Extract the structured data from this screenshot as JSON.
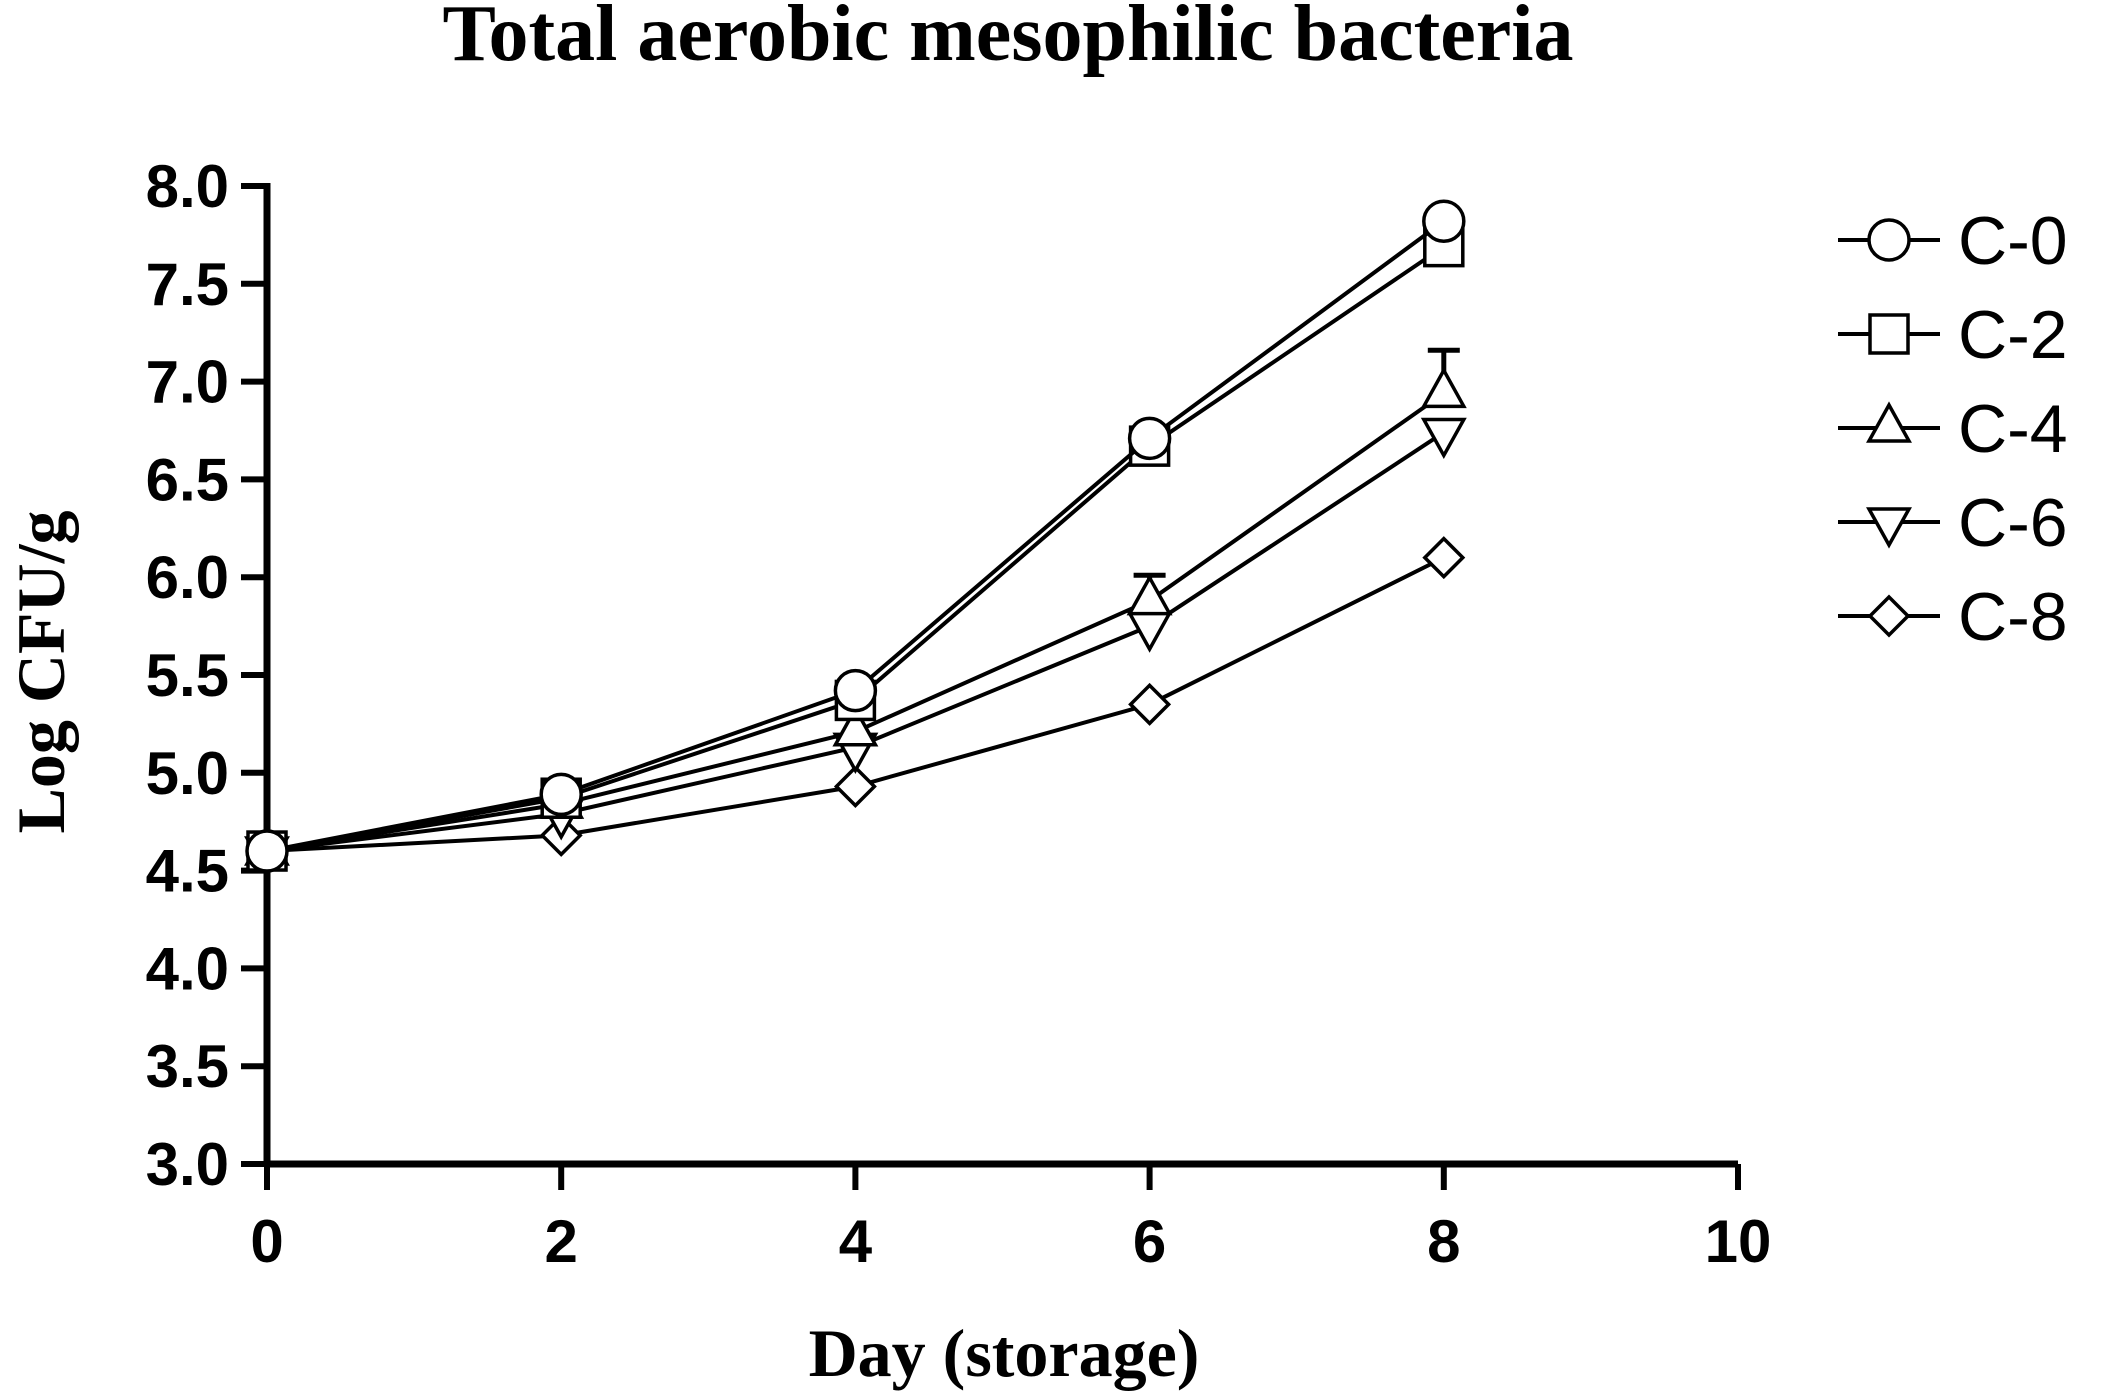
{
  "chart_data": {
    "type": "line",
    "title": "Total aerobic mesophilic bacteria",
    "xlabel": "Day (storage)",
    "ylabel": "Log CFU/g",
    "xlim": [
      0,
      10
    ],
    "ylim": [
      3.0,
      8.0
    ],
    "x_ticks": [
      "0",
      "2",
      "4",
      "6",
      "8",
      "10"
    ],
    "y_ticks": [
      "3.0",
      "3.5",
      "4.0",
      "4.5",
      "5.0",
      "5.5",
      "6.0",
      "6.5",
      "7.0",
      "7.5",
      "8.0"
    ],
    "x": [
      0,
      2,
      4,
      6,
      8
    ],
    "legend_position": "right",
    "grid": false,
    "series": [
      {
        "name": "C-0",
        "marker": "circle",
        "values": [
          4.6,
          4.89,
          5.42,
          6.71,
          7.82
        ],
        "error_upper": [
          0,
          0,
          0,
          0.05,
          0
        ]
      },
      {
        "name": "C-2",
        "marker": "square",
        "values": [
          4.6,
          4.87,
          5.37,
          6.67,
          7.69
        ],
        "error_upper": [
          0,
          0,
          0,
          0.1,
          0
        ]
      },
      {
        "name": "C-4",
        "marker": "triangle-up",
        "values": [
          4.6,
          4.84,
          5.21,
          5.88,
          6.94
        ],
        "error_upper": [
          0,
          0,
          0,
          0.13,
          0.22
        ]
      },
      {
        "name": "C-6",
        "marker": "triangle-down",
        "values": [
          4.6,
          4.79,
          5.13,
          5.75,
          6.74
        ],
        "error_upper": [
          0,
          0,
          0,
          0,
          0
        ]
      },
      {
        "name": "C-8",
        "marker": "diamond",
        "values": [
          4.6,
          4.68,
          4.93,
          5.35,
          6.1
        ],
        "error_upper": [
          0,
          0,
          0,
          0,
          0
        ]
      }
    ]
  }
}
